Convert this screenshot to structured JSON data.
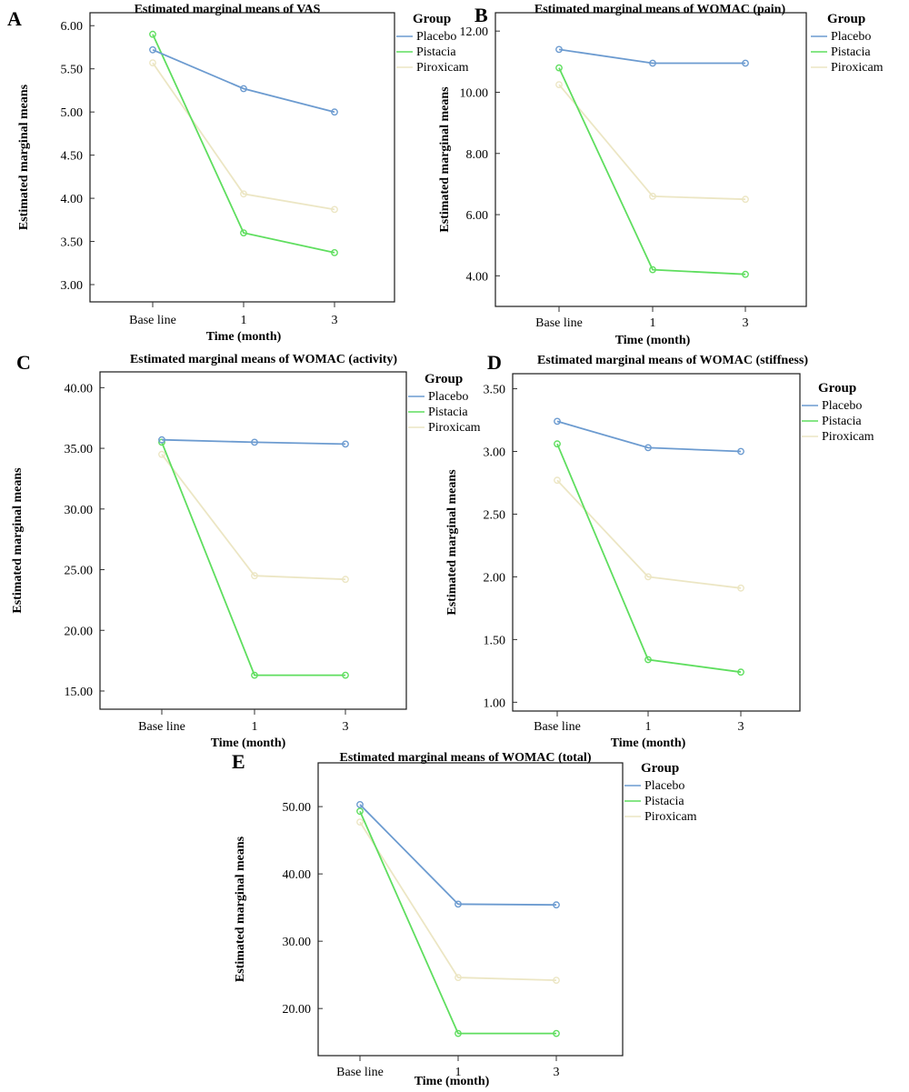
{
  "figure": {
    "legend_title": "Group",
    "series_colors": {
      "Placebo": "#6c9bd0",
      "Pistacia": "#5fde5f",
      "Piroxicam": "#ece6c4"
    }
  },
  "chart_data": [
    {
      "panel": "A",
      "type": "line",
      "title": "Estimated marginal means of VAS",
      "xlabel": "Time (month)",
      "ylabel": "Estimated marginal means",
      "categories": [
        "Base line",
        "1",
        "3"
      ],
      "ylim": [
        2.8,
        6.15
      ],
      "yticks": [
        3.0,
        3.5,
        4.0,
        4.5,
        5.0,
        5.5,
        6.0
      ],
      "ytick_labels": [
        "3.00",
        "3.50",
        "4.00",
        "4.50",
        "5.00",
        "5.50",
        "6.00"
      ],
      "legend_position": "right",
      "series": [
        {
          "name": "Placebo",
          "values": [
            5.72,
            5.27,
            5.0
          ]
        },
        {
          "name": "Pistacia",
          "values": [
            5.9,
            3.6,
            3.37
          ]
        },
        {
          "name": "Piroxicam",
          "values": [
            5.57,
            4.05,
            3.87
          ]
        }
      ]
    },
    {
      "panel": "B",
      "type": "line",
      "title": "Estimated marginal means of WOMAC (pain)",
      "xlabel": "Time (month)",
      "ylabel": "Estimated marginal means",
      "categories": [
        "Base line",
        "1",
        "3"
      ],
      "ylim": [
        3.0,
        12.6
      ],
      "yticks": [
        4.0,
        6.0,
        8.0,
        10.0,
        12.0
      ],
      "ytick_labels": [
        "4.00",
        "6.00",
        "8.00",
        "10.00",
        "12.00"
      ],
      "legend_position": "right",
      "series": [
        {
          "name": "Placebo",
          "values": [
            11.4,
            10.95,
            10.95
          ]
        },
        {
          "name": "Pistacia",
          "values": [
            10.8,
            4.2,
            4.05
          ]
        },
        {
          "name": "Piroxicam",
          "values": [
            10.25,
            6.6,
            6.5
          ]
        }
      ]
    },
    {
      "panel": "C",
      "type": "line",
      "title": "Estimated marginal means of WOMAC (activity)",
      "xlabel": "Time (month)",
      "ylabel": "Estimated marginal means",
      "categories": [
        "Base line",
        "1",
        "3"
      ],
      "ylim": [
        13.5,
        41.3
      ],
      "yticks": [
        15,
        20,
        25,
        30,
        35,
        40
      ],
      "ytick_labels": [
        "15.00",
        "20.00",
        "25.00",
        "30.00",
        "35.00",
        "40.00"
      ],
      "legend_position": "right",
      "series": [
        {
          "name": "Placebo",
          "values": [
            35.7,
            35.5,
            35.35
          ]
        },
        {
          "name": "Pistacia",
          "values": [
            35.5,
            16.3,
            16.3
          ]
        },
        {
          "name": "Piroxicam",
          "values": [
            34.5,
            24.5,
            24.2
          ]
        }
      ]
    },
    {
      "panel": "D",
      "type": "line",
      "title": "Estimated marginal means of WOMAC (stiffness)",
      "xlabel": "Time (month)",
      "ylabel": "Estimated marginal means",
      "categories": [
        "Base line",
        "1",
        "3"
      ],
      "ylim": [
        0.93,
        3.62
      ],
      "yticks": [
        1.0,
        1.5,
        2.0,
        2.5,
        3.0,
        3.5
      ],
      "ytick_labels": [
        "1.00",
        "1.50",
        "2.00",
        "2.50",
        "3.00",
        "3.50"
      ],
      "legend_position": "right",
      "series": [
        {
          "name": "Placebo",
          "values": [
            3.24,
            3.03,
            3.0
          ]
        },
        {
          "name": "Pistacia",
          "values": [
            3.06,
            1.34,
            1.24
          ]
        },
        {
          "name": "Piroxicam",
          "values": [
            2.77,
            2.0,
            1.91
          ]
        }
      ]
    },
    {
      "panel": "E",
      "type": "line",
      "title": "Estimated marginal means of WOMAC (total)",
      "xlabel": "Time (month)",
      "ylabel": "Estimated marginal means",
      "categories": [
        "Base line",
        "1",
        "3"
      ],
      "ylim": [
        13.0,
        56.5
      ],
      "yticks": [
        20,
        30,
        40,
        50
      ],
      "ytick_labels": [
        "20.00",
        "30.00",
        "40.00",
        "50.00"
      ],
      "legend_position": "right",
      "series": [
        {
          "name": "Placebo",
          "values": [
            50.3,
            35.5,
            35.4
          ]
        },
        {
          "name": "Pistacia",
          "values": [
            49.3,
            16.3,
            16.3
          ]
        },
        {
          "name": "Piroxicam",
          "values": [
            47.7,
            24.6,
            24.2
          ]
        }
      ]
    }
  ]
}
